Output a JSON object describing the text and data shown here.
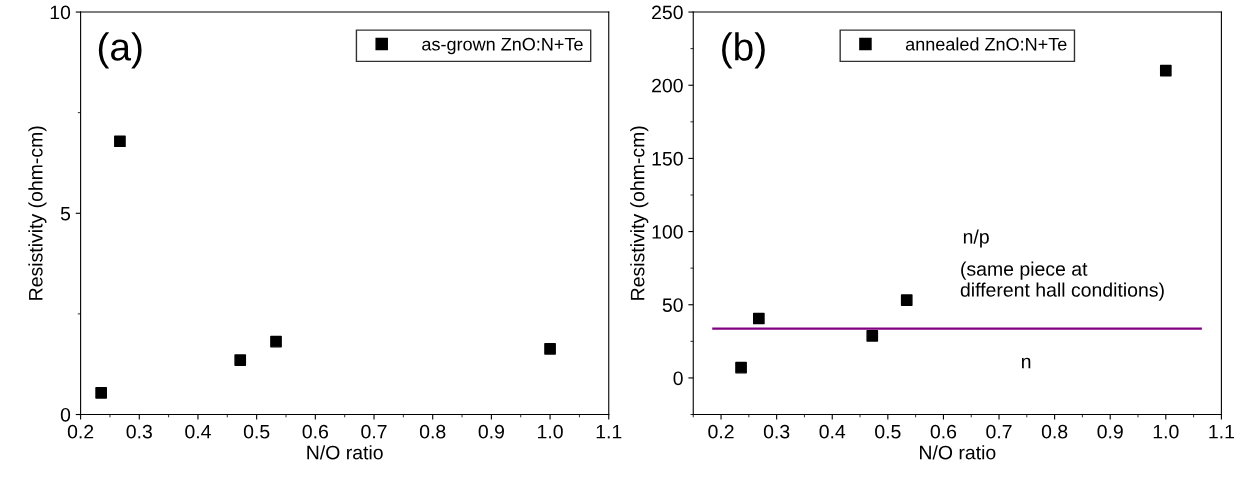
{
  "chart_data": [
    {
      "type": "scatter",
      "annotations": [
        "(a)"
      ],
      "xlabel": "N/O ratio",
      "ylabel": "Resistivity (ohm-cm)",
      "xlim": [
        0.2,
        1.1
      ],
      "xticks": [
        {
          "value": 0.2,
          "label": "0.2"
        },
        {
          "value": 0.3,
          "label": "0.3"
        },
        {
          "value": 0.4,
          "label": "0.4"
        },
        {
          "value": 0.5,
          "label": "0.5"
        },
        {
          "value": 0.6,
          "label": "0.6"
        },
        {
          "value": 0.7,
          "label": "0.7"
        },
        {
          "value": 0.8,
          "label": "0.8"
        },
        {
          "value": 0.9,
          "label": "0.9"
        },
        {
          "value": 1.0,
          "label": "1.0"
        },
        {
          "value": 1.1,
          "label": "1.1"
        }
      ],
      "ylim": [
        0,
        10
      ],
      "yticks": [
        0,
        5,
        10
      ],
      "marker": "square",
      "legend": "top right",
      "grid": false,
      "series": [
        {
          "name": "as-grown ZnO:N+Te",
          "color": "#000000",
          "x": [
            0.235,
            0.267,
            0.472,
            0.533,
            1.0
          ],
          "values": [
            0.54,
            6.79,
            1.35,
            1.81,
            1.63
          ]
        }
      ]
    },
    {
      "type": "scatter",
      "annotations": [
        "(b)",
        "n/p",
        "(same piece at\ndifferent hall conditions)",
        "n"
      ],
      "xlabel": "N/O ratio",
      "ylabel": "Resistivity (ohm-cm)",
      "xlim": [
        0.15,
        1.1
      ],
      "xticks": [
        {
          "value": 0.2,
          "label": "0.2"
        },
        {
          "value": 0.3,
          "label": "0.3"
        },
        {
          "value": 0.4,
          "label": "0.4"
        },
        {
          "value": 0.5,
          "label": "0.5"
        },
        {
          "value": 0.6,
          "label": "0.6"
        },
        {
          "value": 0.7,
          "label": "0.7"
        },
        {
          "value": 0.8,
          "label": "0.8"
        },
        {
          "value": 0.9,
          "label": "0.9"
        },
        {
          "value": 1.0,
          "label": "1.0"
        },
        {
          "value": 1.1,
          "label": "1.1"
        }
      ],
      "ylim": [
        -25,
        250
      ],
      "yticks": [
        0,
        50,
        100,
        150,
        200,
        250
      ],
      "marker": "square",
      "legend": "top",
      "grid": false,
      "series": [
        {
          "name": "annealed ZnO:N+Te",
          "color": "#000000",
          "x": [
            0.236,
            0.268,
            0.472,
            0.534,
            1.0
          ],
          "values": [
            7,
            40.6,
            28.7,
            53.2,
            210
          ]
        },
        {
          "type": "line",
          "color": "#800080",
          "marker": "none",
          "x": [
            0.186,
            1.063
          ],
          "values": [
            33.7,
            33.7
          ]
        }
      ]
    }
  ]
}
